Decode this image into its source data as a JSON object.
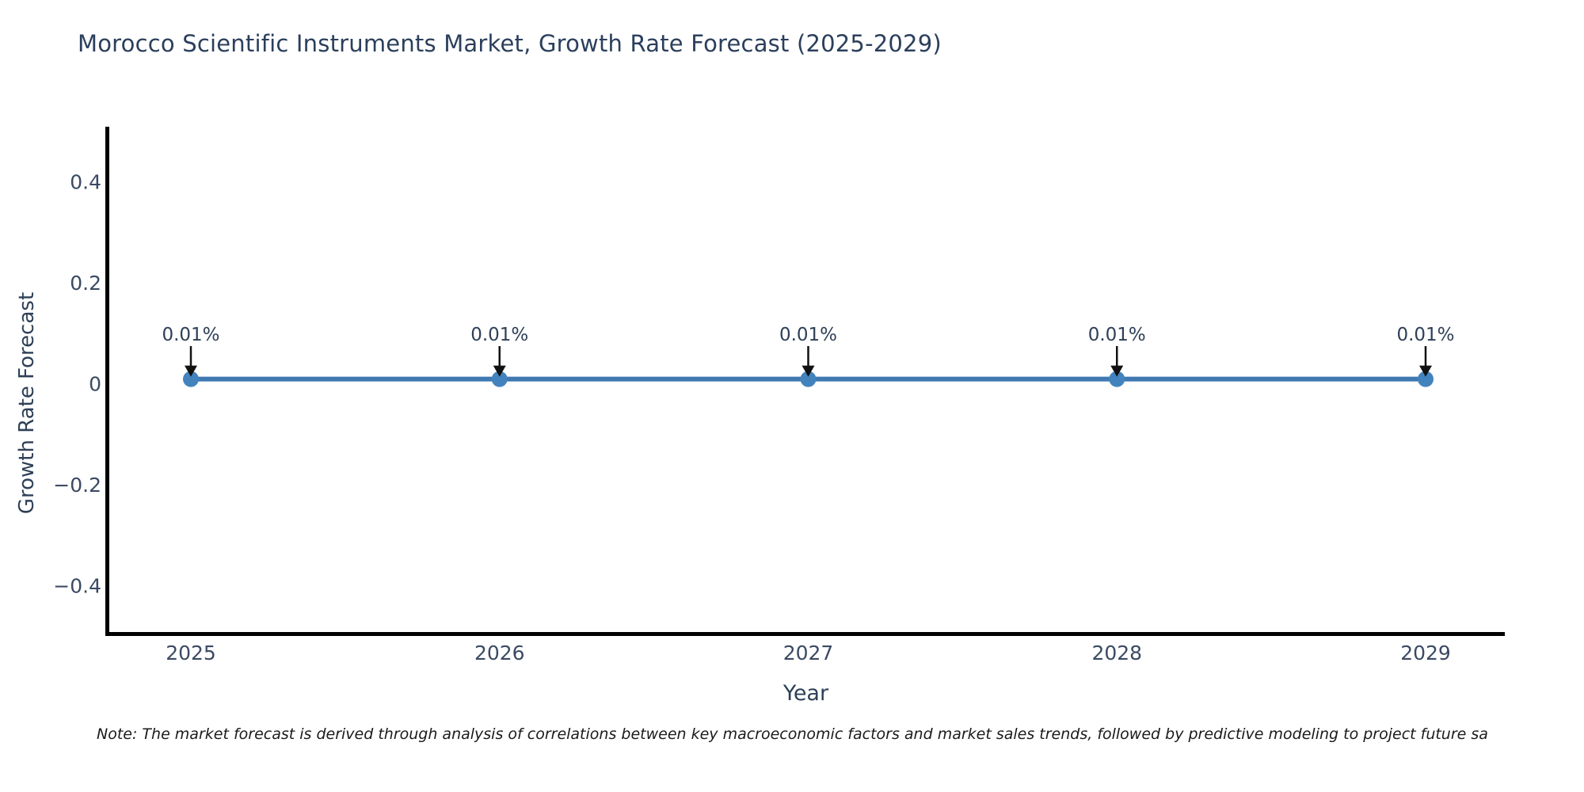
{
  "title": "Morocco Scientific Instruments Market, Growth Rate Forecast (2025-2029)",
  "note": "Note: The market forecast is derived through analysis of correlations between key macroeconomic factors and market sales trends, followed by predictive modeling to project future sa",
  "chart_data": {
    "type": "line",
    "title": "Morocco Scientific Instruments Market, Growth Rate Forecast (2025-2029)",
    "xlabel": "Year",
    "ylabel": "Growth Rate Forecast",
    "x": [
      2025,
      2026,
      2027,
      2028,
      2029
    ],
    "xtick_labels": [
      "2025",
      "2026",
      "2027",
      "2028",
      "2029"
    ],
    "series": [
      {
        "name": "Growth Rate Forecast",
        "values": [
          0.01,
          0.01,
          0.01,
          0.01,
          0.01
        ]
      }
    ],
    "point_labels": [
      "0.01%",
      "0.01%",
      "0.01%",
      "0.01%",
      "0.01%"
    ],
    "ytick_values": [
      0.4,
      0.2,
      0,
      -0.2,
      -0.4
    ],
    "ytick_labels": [
      "0.4",
      "0.2",
      "0",
      "−0.2",
      "−0.4"
    ],
    "ylim": [
      -0.5,
      0.51
    ],
    "grid": false,
    "legend_position": "none",
    "colors": {
      "line": "#4079b1",
      "marker": "#4383bd",
      "axis": "#000000",
      "tick_text": "#3b4a63",
      "annotation_text": "#2e4057",
      "annotation_arrow": "#111111",
      "title_text": "#2b3f5c"
    }
  }
}
